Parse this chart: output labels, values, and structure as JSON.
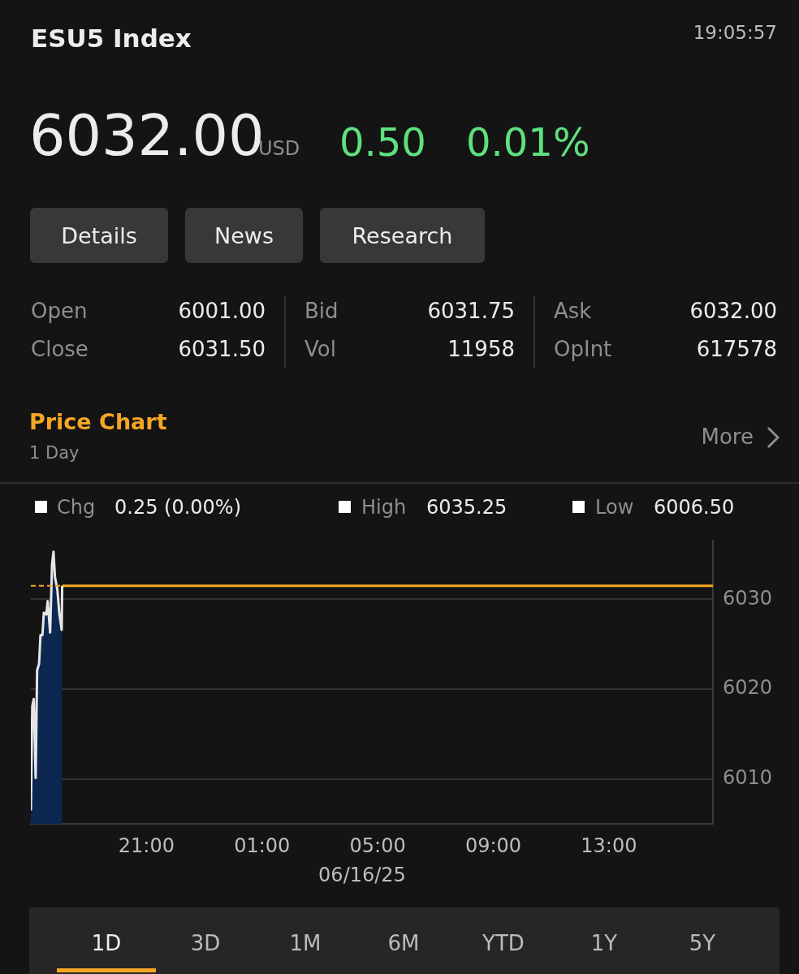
{
  "chart_data": {
    "type": "area",
    "title": "ESU5 Index",
    "subtitle": "Price Chart",
    "x": [
      "--06-15T17:00",
      "--06-15T17:03",
      "--06-15T17:06",
      "--06-15T17:10",
      "--06-15T17:13",
      "--06-15T17:17",
      "--06-15T17:20",
      "--06-15T17:24",
      "--06-15T17:27",
      "--06-15T17:32",
      "--06-15T17:35",
      "--06-15T17:40",
      "--06-15T17:44",
      "--06-15T17:47",
      "--06-15T17:50",
      "--06-15T17:55",
      "--06-15T17:59",
      "--06-15T18:04",
      "--06-15T18:05"
    ],
    "series": [
      {
        "type": "area",
        "color": "#e6e6e6",
        "values": [
          6006.5,
          6018.1,
          6018.9,
          6010.1,
          6022.1,
          6022.8,
          6026.0,
          6026.0,
          6028.5,
          6028.3,
          6029.8,
          6026.3,
          6033.9,
          6035.3,
          6032.5,
          6031.1,
          6028.5,
          6026.6,
          6031.5
        ]
      },
      {
        "type": "line",
        "color": "#f5a623",
        "x": [
          "--06-15T18:05",
          "--06-16T16:36"
        ],
        "values": [
          6031.5,
          6031.5
        ]
      }
    ],
    "xlim": [
      "--06-15T17:00",
      "--06-16T16:36"
    ],
    "xticks": [
      {
        "value": "--06-15T21:00",
        "label": "21:00"
      },
      {
        "value": "--06-16T01:00",
        "label": "01:00"
      },
      {
        "value": "--06-16T05:00",
        "label": "05:00"
      },
      {
        "value": "--06-16T09:00",
        "label": "09:00"
      },
      {
        "value": "--06-16T13:00",
        "label": "13:00"
      }
    ],
    "ylim": [
      6005,
      6036.5
    ],
    "yticks": [
      6010,
      6020,
      6030
    ],
    "ref_lines": [
      {
        "axis": "y",
        "value": 6031.5,
        "color": "#f5a623",
        "line_style": "dashed"
      }
    ],
    "grid": "y",
    "legend": false,
    "annotations": [
      "19:05:57",
      "6032.00",
      "USD",
      "0.50",
      "0.01%",
      "Details",
      "News",
      "Research",
      "Open",
      "6001.00",
      "Close",
      "6031.50",
      "Bid",
      "6031.75",
      "Vol",
      "11958",
      "Ask",
      "6032.00",
      "OpInt",
      "617578",
      "1 Day",
      "More",
      "Chg",
      "0.25 (0.00%)",
      "High",
      "6035.25",
      "Low",
      "6006.50",
      "06/16/25",
      "1D",
      "3D",
      "1M",
      "6M",
      "YTD",
      "1Y",
      "5Y"
    ]
  }
}
